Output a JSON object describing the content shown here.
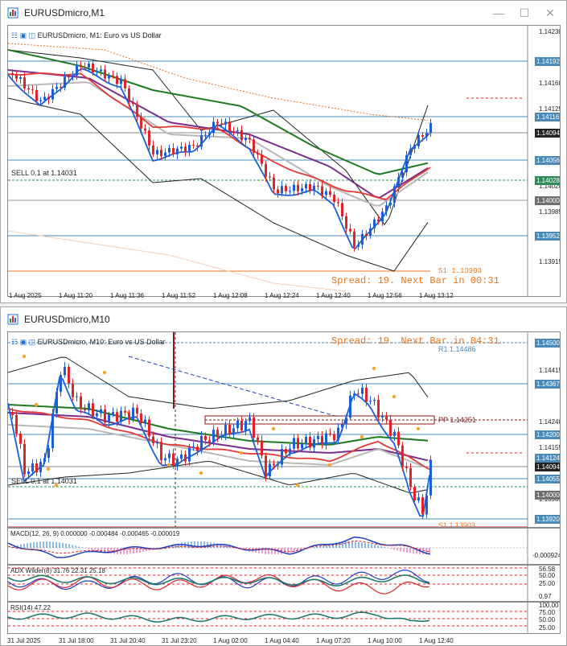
{
  "colors": {
    "accent_blue": "#1e73d8",
    "bull_blue": "#1a5fd8",
    "bear_red": "#e0242c",
    "ma_green": "#1f7a1f",
    "ma_purple": "#7b2d8e",
    "ma_red": "#e53935",
    "ma_gray": "#b8b8b8",
    "line_orange": "#e8731d",
    "pivot_dot": "#f7a42a"
  },
  "window1": {
    "title": "EURUSDmicro,M1",
    "header": "EURUSDmicro, M1:  Euro vs US Dollar",
    "order_label": "SELL 0.1 at 1.14031",
    "s1_label": "S1 1.13903",
    "spread_text": "Spread: 19. Next Bar in 00:31",
    "price_ticks": [
      "1.14230",
      "1.14160",
      "1.14125",
      "1.14020",
      "1.13985",
      "1.13915"
    ],
    "price_labels": [
      "1.14192",
      "1.14116",
      "1.14094",
      "1.14056",
      "1.14028",
      "1.14000",
      "1.13952"
    ],
    "time_ticks": [
      "1 Aug 2025",
      "1 Aug 11:20",
      "1 Aug 11:36",
      "1 Aug 11:52",
      "1 Aug 12:08",
      "1 Aug 12:24",
      "1 Aug 12:40",
      "1 Aug 12:56",
      "1 Aug 13:12"
    ]
  },
  "window2": {
    "title": "EURUSDmicro,M10",
    "header": "EURUSDmicro, M10:  Euro vs US Dollar",
    "order_label": "SELL 0.1 at 1.14031",
    "r1_label": "R1 1.14486",
    "pp_label": "PP 1.14251",
    "s1_label": "S1 1.13903",
    "spread_text": "Spread: 19. Next Bar in 04:31",
    "price_ticks": [
      "1.14415",
      "1.14240",
      "1.14155",
      "1.13985"
    ],
    "price_labels": [
      "1.14500",
      "1.14367",
      "1.14200",
      "1.14124",
      "1.14094",
      "1.14055",
      "1.14000",
      "1.13920"
    ],
    "time_ticks": [
      "31 Jul 2025",
      "31 Jul 18:00",
      "31 Jul 20:40",
      "31 Jul 23:20",
      "1 Aug 02:00",
      "1 Aug 04:40",
      "1 Aug 07:20",
      "1 Aug 10:00",
      "1 Aug 12:40"
    ],
    "macd": {
      "label": "MACD(12, 26, 9) 0.000000 -0.000484 -0.000465 -0.000019",
      "ticks": [
        "-0.000924"
      ]
    },
    "adx": {
      "label": "ADX Wilder(8) 31.76 22.31 25.18",
      "ticks": [
        "56.58",
        "50.00",
        "25.00",
        "0.97"
      ]
    },
    "rsi": {
      "label": "RSI(14) 47.22",
      "ticks": [
        "100.00",
        "75.00",
        "50.00",
        "25.00"
      ]
    }
  }
}
